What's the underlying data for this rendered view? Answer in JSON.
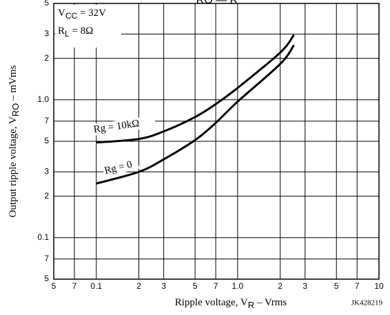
{
  "chart_data": {
    "type": "line",
    "title": "RO — R",
    "xlabel": [
      "Ripple voltage, V",
      "R",
      " – Vrms"
    ],
    "ylabel": [
      "Output ripple voltage, V",
      "RO",
      " – mVms"
    ],
    "annotations": [
      [
        "V",
        "CC",
        " = 32V"
      ],
      [
        "R",
        "L",
        " = 8Ω"
      ]
    ],
    "code": "JK428219",
    "log_x": true,
    "log_y": true,
    "grid": true,
    "xlim": [
      0.05,
      10
    ],
    "ylim": [
      0.05,
      5
    ],
    "xticks": [
      {
        "value": 0.05,
        "label": "5"
      },
      {
        "value": 0.07,
        "label": "7"
      },
      0.1,
      {
        "value": 0.2,
        "label": "2"
      },
      {
        "value": 0.3,
        "label": "3"
      },
      {
        "value": 0.5,
        "label": "5"
      },
      {
        "value": 0.7,
        "label": "7"
      },
      {
        "value": 1,
        "label": "1.0"
      },
      2,
      3,
      5,
      7,
      10
    ],
    "yticks": [
      {
        "value": 0.05,
        "label": "5"
      },
      {
        "value": 0.07,
        "label": "7"
      },
      0.1,
      {
        "value": 0.2,
        "label": "2"
      },
      {
        "value": 0.3,
        "label": "3"
      },
      {
        "value": 0.5,
        "label": "5"
      },
      {
        "value": 0.7,
        "label": "7"
      },
      {
        "value": 1,
        "label": "1.0"
      },
      2,
      3,
      5
    ],
    "series": [
      {
        "name": "Rg = 10kΩ",
        "color": "#000000",
        "x": [
          0.1,
          0.2,
          0.3,
          0.5,
          0.7,
          1.0,
          2.0,
          2.5
        ],
        "values": [
          0.49,
          0.52,
          0.59,
          0.75,
          0.93,
          1.22,
          2.2,
          2.96
        ]
      },
      {
        "name": "Rg = 0",
        "color": "#000000",
        "x": [
          0.1,
          0.2,
          0.3,
          0.5,
          0.7,
          1.0,
          2.0,
          2.5
        ],
        "values": [
          0.247,
          0.3,
          0.37,
          0.51,
          0.68,
          0.97,
          1.82,
          2.49
        ]
      }
    ]
  }
}
